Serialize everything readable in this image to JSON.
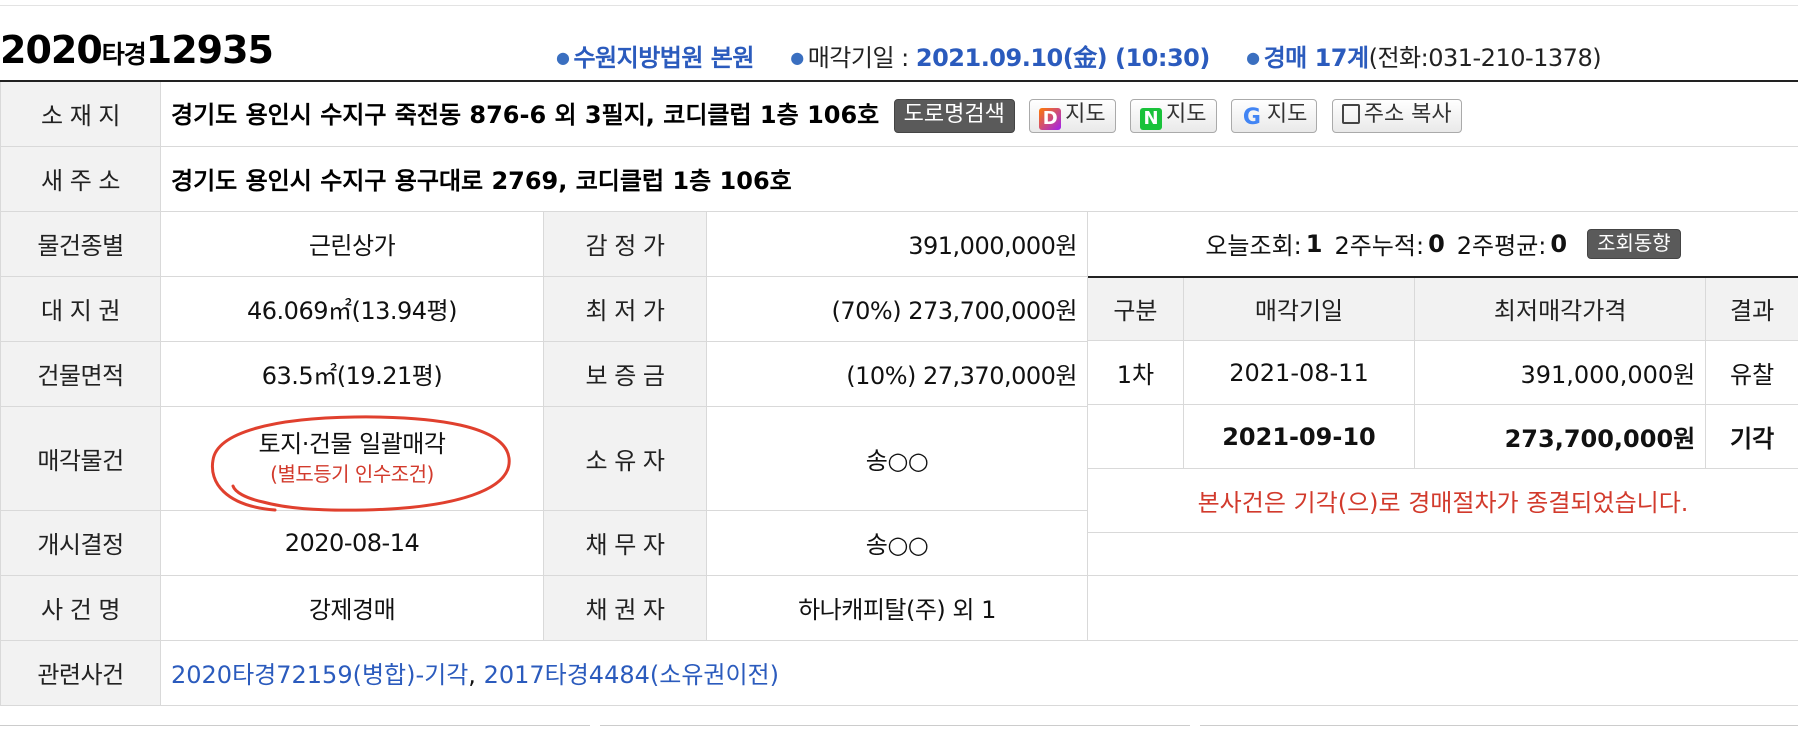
{
  "header": {
    "case_year": "2020",
    "case_type": "타경",
    "case_number": "12935",
    "court": "수원지방법원 본원",
    "sale_date_label": "매각기일 : ",
    "sale_date": "2021.09.10(金) (10:30)",
    "dept": "경매 17계",
    "phone": "(전화:031-210-1378)"
  },
  "property": {
    "location_label": "소 재 지",
    "location": "경기도 용인시 수지구 죽전동 876-6 외 3필지, 코디클럽 1층 106호",
    "buttons": {
      "road_search": "도로명검색",
      "daum_map": "지도",
      "naver_map": "지도",
      "google_map": "지도",
      "copy_address": "주소 복사"
    },
    "new_address_label": "새 주 소",
    "new_address": "경기도 용인시 수지구 용구대로 2769, 코디클럽 1층 106호",
    "type_label": "물건종별",
    "type": "근린상가",
    "land_label": "대 지 권",
    "land": "46.069㎡(13.94평)",
    "building_label": "건물면적",
    "building": "63.5㎡(19.21평)",
    "sale_item_label": "매각물건",
    "sale_item": "토지·건물 일괄매각",
    "sale_item_note": "(별도등기 인수조건)",
    "start_label": "개시결정",
    "start_date": "2020-08-14",
    "case_name_label": "사 건 명",
    "case_name": "강제경매",
    "appraisal_label": "감 정 가",
    "appraisal": "391,000,000원",
    "min_price_label": "최 저 가",
    "min_price": "(70%) 273,700,000원",
    "deposit_label": "보 증 금",
    "deposit": "(10%) 27,370,000원",
    "owner_label": "소 유 자",
    "owner": "송○○",
    "debtor_label": "채 무 자",
    "debtor": "송○○",
    "creditor_label": "채 권 자",
    "creditor": "하나캐피탈(주) 외 1",
    "related_label": "관련사건",
    "related_1": "2020타경72159(병합)-기각",
    "related_sep": ", ",
    "related_2": "2017타경4484(소유권이전)"
  },
  "stats": {
    "today_label": "오늘조회:",
    "today": "1",
    "two_week_total_label": "2주누적:",
    "two_week_total": "0",
    "two_week_avg_label": "2주평균:",
    "two_week_avg": "0",
    "trend_button": "조회동향"
  },
  "history": {
    "headers": [
      "구분",
      "매각기일",
      "최저매각가격",
      "결과"
    ],
    "rows": [
      [
        "1차",
        "2021-08-11",
        "391,000,000원",
        "유찰"
      ],
      [
        "",
        "2021-09-10",
        "273,700,000원",
        "기각"
      ]
    ],
    "message": "본사건은 기각(으)로 경매절차가 종결되었습니다."
  },
  "colors": {
    "link_blue": "#2b5bbd",
    "alert_red": "#d23a2c",
    "label_bg": "#f2f2f2"
  }
}
